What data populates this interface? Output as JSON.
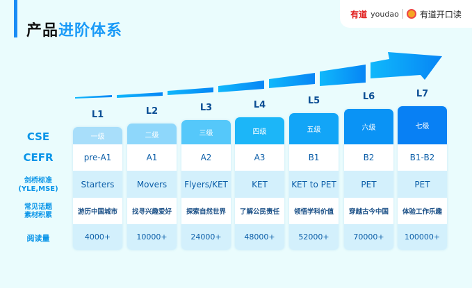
{
  "header": {
    "title_part1": "产品",
    "title_part2": "进阶体系"
  },
  "brand": {
    "logo_cn": "有道",
    "logo_en": "youdao",
    "app_name": "有道开口读"
  },
  "row_labels": {
    "cse": "CSE",
    "cefr": "CEFR",
    "cambridge_line1": "剑桥标准",
    "cambridge_line2": "(YLE,MSE)",
    "topics_line1": "常见话题",
    "topics_line2": "素材积累",
    "reading": "阅读量"
  },
  "levels": [
    {
      "level": "L1",
      "cse": "一级",
      "cefr": "pre-A1",
      "cambridge": "Starters",
      "topic": "游历中国城市",
      "reading": "4000+",
      "color": "#a8defa"
    },
    {
      "level": "L2",
      "cse": "二级",
      "cefr": "A1",
      "cambridge": "Movers",
      "topic": "找寻兴趣爱好",
      "reading": "10000+",
      "color": "#8ed7fb"
    },
    {
      "level": "L3",
      "cse": "三级",
      "cefr": "A2",
      "cambridge": "Flyers/KET",
      "topic": "探索自然世界",
      "reading": "24000+",
      "color": "#55c8fa"
    },
    {
      "level": "L4",
      "cse": "四级",
      "cefr": "A3",
      "cambridge": "KET",
      "topic": "了解公民责任",
      "reading": "48000+",
      "color": "#1cb6f8"
    },
    {
      "level": "L5",
      "cse": "五级",
      "cefr": "B1",
      "cambridge": "KET to PET",
      "topic": "领悟学科价值",
      "reading": "52000+",
      "color": "#12a5f7"
    },
    {
      "level": "L6",
      "cse": "六级",
      "cefr": "B2",
      "cambridge": "PET",
      "topic": "穿越古今中国",
      "reading": "70000+",
      "color": "#0a93f5"
    },
    {
      "level": "L7",
      "cse": "七级",
      "cefr": "B1-B2",
      "cambridge": "PET",
      "topic": "体验工作乐趣",
      "reading": "100000+",
      "color": "#0880f4"
    }
  ]
}
